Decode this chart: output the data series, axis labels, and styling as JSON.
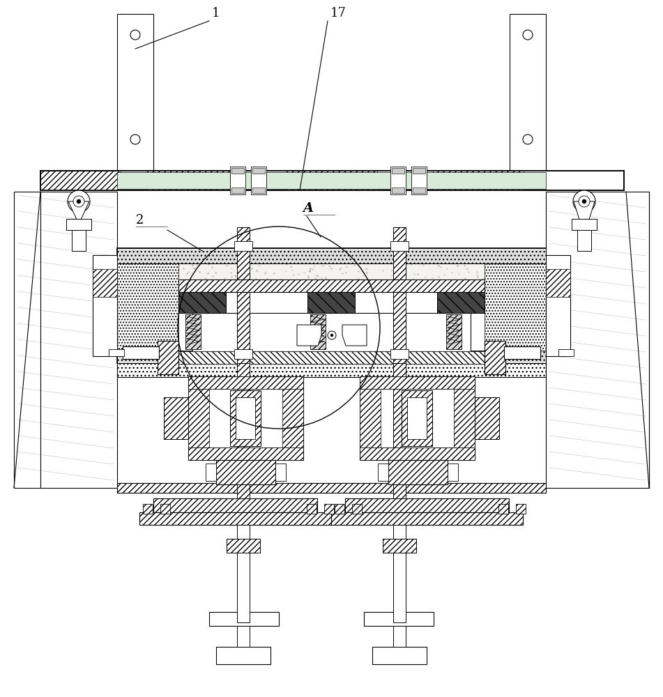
{
  "bg_color": "#ffffff",
  "line_color": "#000000",
  "label_1": "1",
  "label_2": "2",
  "label_17": "17",
  "label_A": "A",
  "fig_width": 9.51,
  "fig_height": 10.0,
  "dpi": 100,
  "speckle_color": "#888888",
  "green_tint": "#d8ead8",
  "hatch_gray": "#aaaaaa"
}
